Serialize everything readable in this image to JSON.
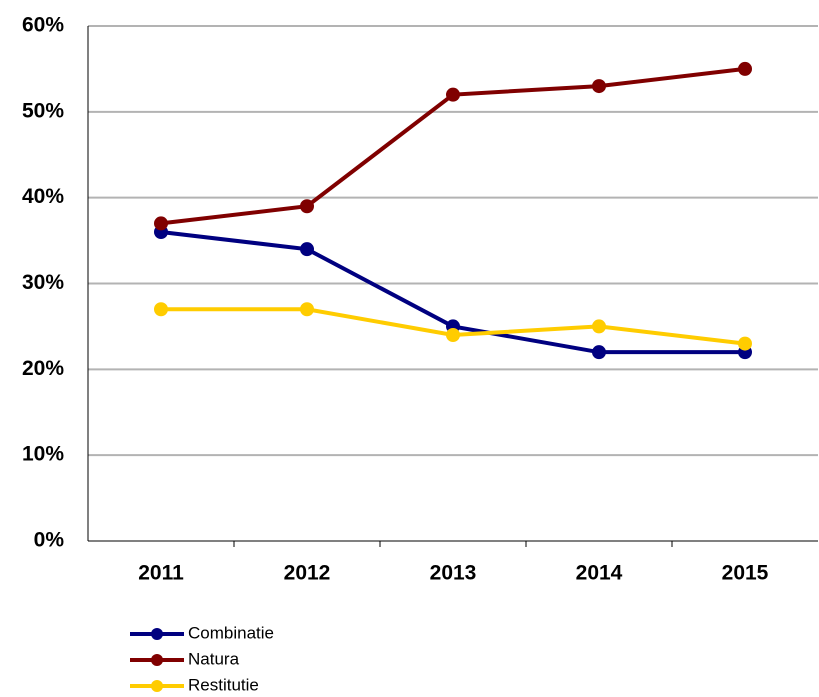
{
  "chart_data": {
    "type": "line",
    "categories": [
      "2011",
      "2012",
      "2013",
      "2014",
      "2015"
    ],
    "series": [
      {
        "name": "Combinatie",
        "color": "#000080",
        "values": [
          36,
          34,
          25,
          22,
          22
        ]
      },
      {
        "name": "Natura",
        "color": "#800000",
        "values": [
          37,
          39,
          52,
          53,
          55
        ]
      },
      {
        "name": "Restitutie",
        "color": "#ffcc00",
        "values": [
          27,
          27,
          24,
          25,
          23
        ]
      }
    ],
    "ylim": [
      0,
      60
    ],
    "yticks": [
      {
        "value": 0,
        "label": "0%"
      },
      {
        "value": 10,
        "label": "10%"
      },
      {
        "value": 20,
        "label": "20%"
      },
      {
        "value": 30,
        "label": "30%"
      },
      {
        "value": 40,
        "label": "40%"
      },
      {
        "value": 50,
        "label": "50%"
      },
      {
        "value": 60,
        "label": "60%"
      }
    ],
    "grid": true,
    "legend": "bottom"
  }
}
